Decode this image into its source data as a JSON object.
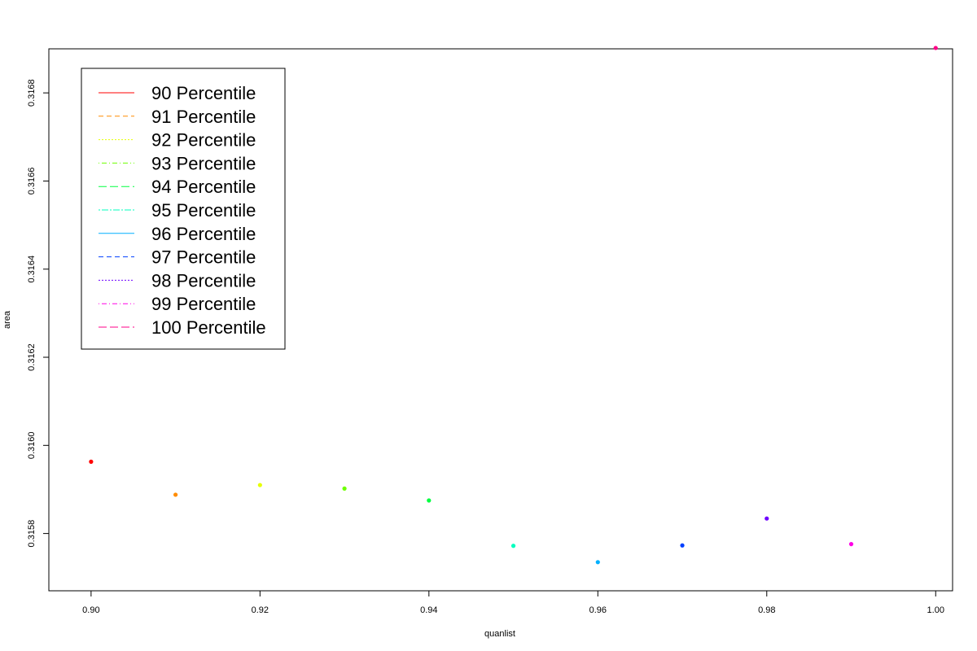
{
  "chart_data": {
    "type": "scatter",
    "xlabel": "quanlist",
    "ylabel": "area",
    "xlim": [
      0.895,
      1.002
    ],
    "ylim": [
      0.31567,
      0.3169
    ],
    "xticks": [
      "0.90",
      "0.92",
      "0.94",
      "0.96",
      "0.98",
      "1.00"
    ],
    "yticks": [
      "0.3158",
      "0.3160",
      "0.3162",
      "0.3164",
      "0.3166",
      "0.3168"
    ],
    "grid": false,
    "legend_position": "top-left",
    "series": [
      {
        "name": "90 Percentile",
        "x": 0.9,
        "y": 0.315963,
        "color": "#ff0000",
        "dash": ""
      },
      {
        "name": "91 Percentile",
        "x": 0.91,
        "y": 0.315888,
        "color": "#ff8c00",
        "dash": "6,4"
      },
      {
        "name": "92 Percentile",
        "x": 0.92,
        "y": 0.31591,
        "color": "#e6ff00",
        "dash": "2,2"
      },
      {
        "name": "93 Percentile",
        "x": 0.93,
        "y": 0.315902,
        "color": "#6eff00",
        "dash": "1,3,6,3"
      },
      {
        "name": "94 Percentile",
        "x": 0.94,
        "y": 0.315875,
        "color": "#00ff40",
        "dash": "10,4"
      },
      {
        "name": "95 Percentile",
        "x": 0.95,
        "y": 0.315772,
        "color": "#00ffbf",
        "dash": "2,2,8,2"
      },
      {
        "name": "96 Percentile",
        "x": 0.96,
        "y": 0.315735,
        "color": "#00b0ff",
        "dash": ""
      },
      {
        "name": "97 Percentile",
        "x": 0.97,
        "y": 0.315773,
        "color": "#0040ff",
        "dash": "6,4"
      },
      {
        "name": "98 Percentile",
        "x": 0.98,
        "y": 0.315834,
        "color": "#6e00ff",
        "dash": "2,2"
      },
      {
        "name": "99 Percentile",
        "x": 0.99,
        "y": 0.315776,
        "color": "#ff00e6",
        "dash": "1,3,6,3"
      },
      {
        "name": "100 Percentile",
        "x": 1.0,
        "y": 0.316902,
        "color": "#ff0088",
        "dash": "10,4"
      }
    ]
  }
}
